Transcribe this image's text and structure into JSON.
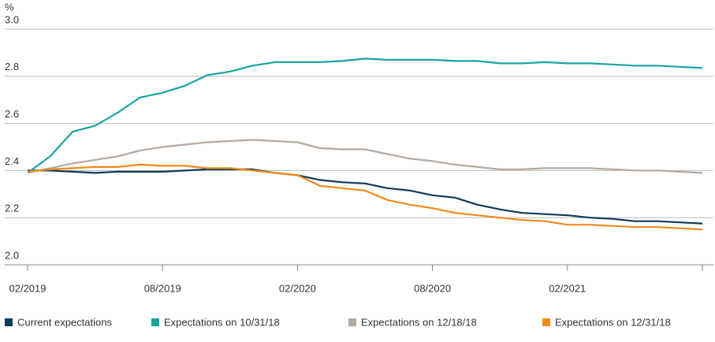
{
  "chart_data": {
    "type": "line",
    "y_unit_label": "%",
    "categories": [
      "02/2019",
      null,
      null,
      null,
      null,
      null,
      "08/2019",
      null,
      null,
      null,
      null,
      null,
      "02/2020",
      null,
      null,
      null,
      null,
      null,
      "08/2020",
      null,
      null,
      null,
      null,
      null,
      "02/2021",
      null,
      null,
      null,
      null,
      null,
      null
    ],
    "series": [
      {
        "name": "Current expectations",
        "color": "#0d3b5a",
        "values": [
          2.4,
          2.4,
          2.395,
          2.39,
          2.395,
          2.395,
          2.395,
          2.4,
          2.405,
          2.405,
          2.405,
          2.39,
          2.38,
          2.36,
          2.35,
          2.345,
          2.325,
          2.315,
          2.295,
          2.285,
          2.255,
          2.235,
          2.22,
          2.215,
          2.21,
          2.2,
          2.195,
          2.185,
          2.185,
          2.18,
          2.175
        ]
      },
      {
        "name": "Expectations on 10/31/18",
        "color": "#1aa3a3",
        "values": [
          2.39,
          2.46,
          2.565,
          2.59,
          2.645,
          2.71,
          2.73,
          2.76,
          2.805,
          2.82,
          2.845,
          2.86,
          2.86,
          2.86,
          2.865,
          2.875,
          2.87,
          2.87,
          2.87,
          2.865,
          2.865,
          2.855,
          2.855,
          2.86,
          2.855,
          2.855,
          2.85,
          2.845,
          2.845,
          2.84,
          2.835
        ]
      },
      {
        "name": "Expectations on 12/18/18",
        "color": "#b4aaa2",
        "values": [
          2.39,
          2.41,
          2.43,
          2.445,
          2.46,
          2.485,
          2.5,
          2.51,
          2.52,
          2.525,
          2.53,
          2.525,
          2.52,
          2.495,
          2.49,
          2.49,
          2.47,
          2.45,
          2.44,
          2.425,
          2.415,
          2.405,
          2.405,
          2.41,
          2.41,
          2.41,
          2.405,
          2.4,
          2.4,
          2.395,
          2.39
        ]
      },
      {
        "name": "Expectations on 12/31/18",
        "color": "#f08a1c",
        "values": [
          2.395,
          2.405,
          2.41,
          2.415,
          2.415,
          2.425,
          2.42,
          2.42,
          2.41,
          2.41,
          2.4,
          2.39,
          2.38,
          2.335,
          2.325,
          2.315,
          2.275,
          2.255,
          2.24,
          2.22,
          2.21,
          2.2,
          2.19,
          2.185,
          2.17,
          2.17,
          2.165,
          2.16,
          2.16,
          2.155,
          2.15
        ]
      }
    ],
    "ylim": [
      2.0,
      3.0
    ],
    "yticks": [
      {
        "value": 2.0,
        "label": "2.0"
      },
      {
        "value": 2.2,
        "label": "2.2"
      },
      {
        "value": 2.4,
        "label": "2.4"
      },
      {
        "value": 2.6,
        "label": "2.6"
      },
      {
        "value": 2.8,
        "label": "2.8"
      },
      {
        "value": 3.0,
        "label": "3.0"
      }
    ],
    "grid": true
  }
}
